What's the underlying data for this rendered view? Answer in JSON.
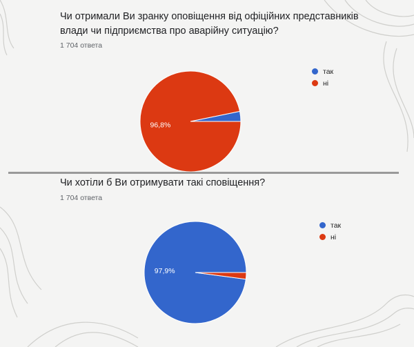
{
  "colors": {
    "yes": "#3366cc",
    "no": "#dc3912"
  },
  "chart_data": [
    {
      "type": "pie",
      "title": "Чи отримали Ви зранку оповіщення від офіційних представників влади чи підприємства про аварійну ситуацію?",
      "subtitle": "1 704 ответа",
      "categories": [
        "так",
        "ні"
      ],
      "values": [
        3.2,
        96.8
      ],
      "colors": [
        "#3366cc",
        "#dc3912"
      ],
      "slice_labels": [
        "",
        "96,8%"
      ],
      "legend_position": "right"
    },
    {
      "type": "pie",
      "title": "Чи хотіли б Ви отримувати такі сповіщення?",
      "subtitle": "1 704 ответа",
      "categories": [
        "так",
        "ні"
      ],
      "values": [
        97.9,
        2.1
      ],
      "colors": [
        "#3366cc",
        "#dc3912"
      ],
      "slice_labels": [
        "97,9%",
        ""
      ],
      "legend_position": "right"
    }
  ]
}
